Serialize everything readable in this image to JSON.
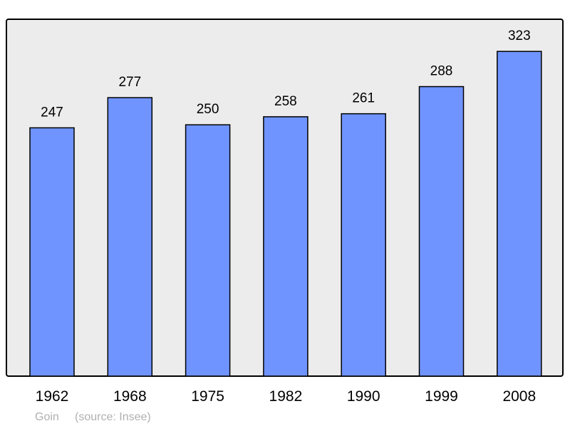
{
  "chart_data": {
    "type": "bar",
    "categories": [
      "1962",
      "1968",
      "1975",
      "1982",
      "1990",
      "1999",
      "2008"
    ],
    "values": [
      247,
      277,
      250,
      258,
      261,
      288,
      323
    ],
    "ylim": [
      0,
      355
    ],
    "grid": false,
    "bar_color": "#7094ff",
    "background_color": "#ececec",
    "footer": {
      "author": "Goin",
      "source": "(source: Insee)"
    }
  }
}
